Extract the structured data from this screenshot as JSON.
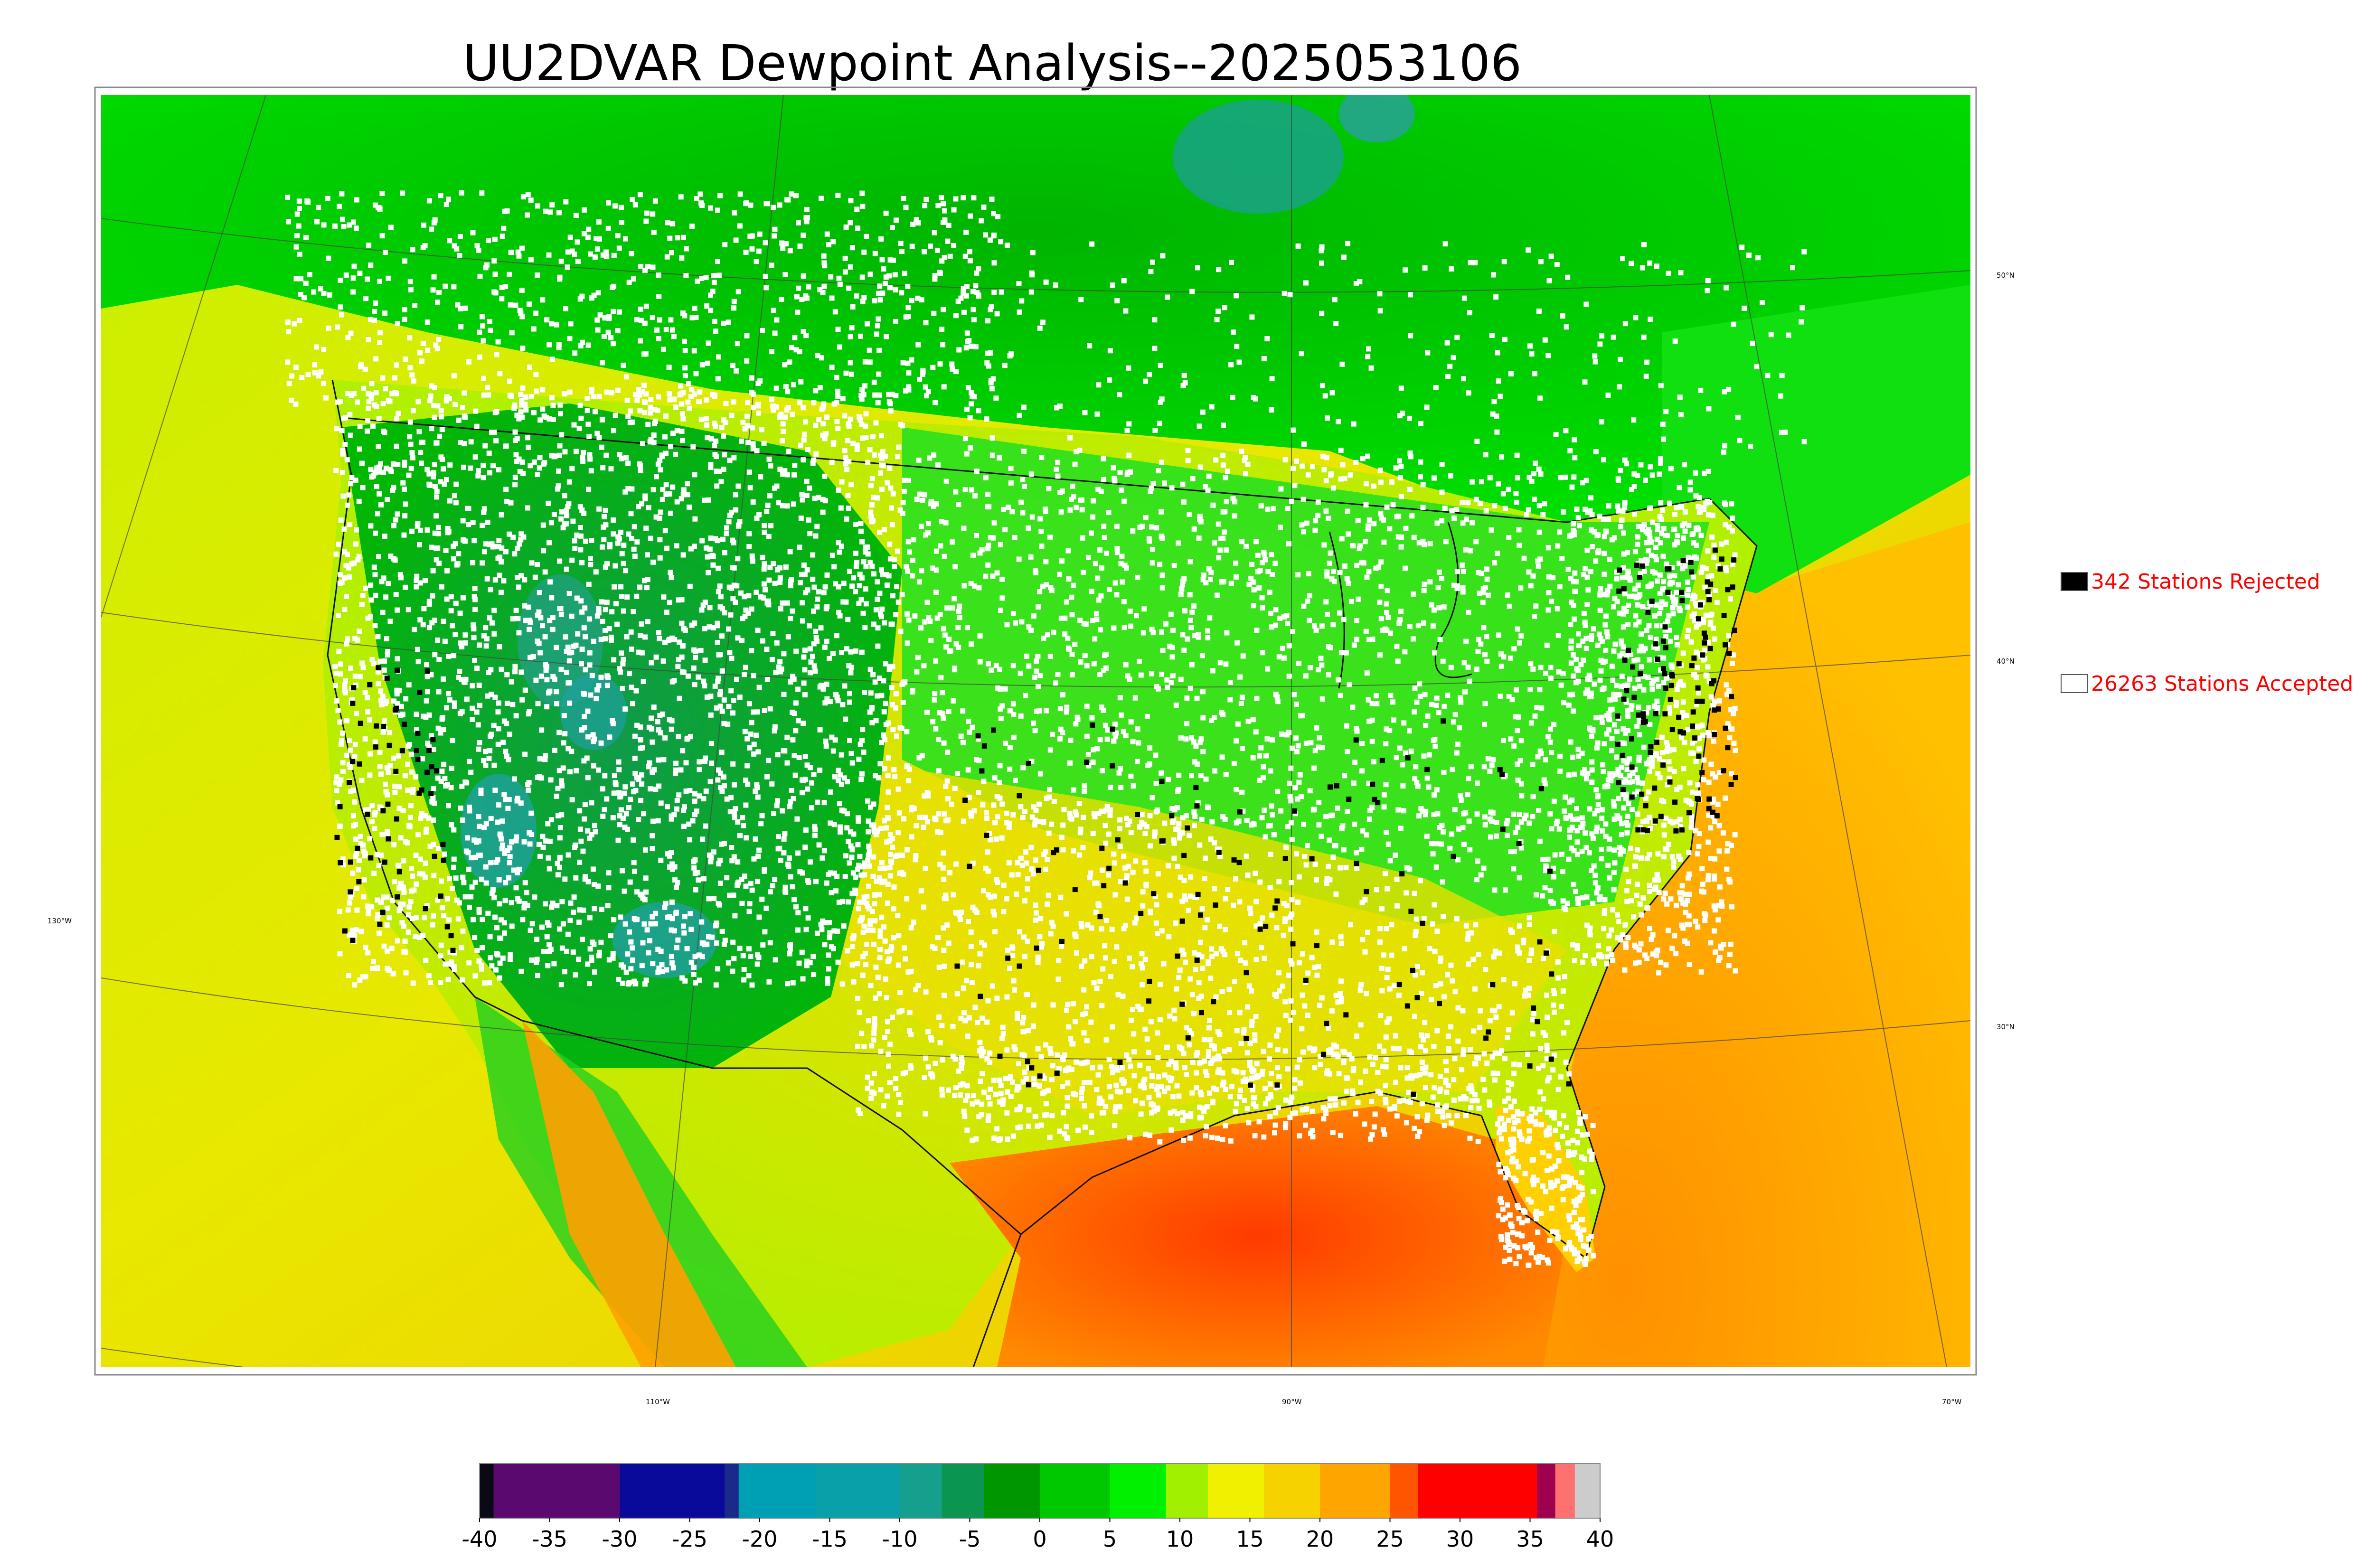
{
  "title": "UU2DVAR Dewpoint Analysis--2025053106",
  "legend": {
    "rejected_label": "342 Stations Rejected",
    "rejected_color": "#000000",
    "accepted_label": "26263 Stations Accepted",
    "accepted_color": "#ffffff",
    "text_color": "#ff0000"
  },
  "longitude_labels": [
    "110°W",
    "90°W",
    "70°W"
  ],
  "latitude_labels": [
    "50°N",
    "40°N",
    "30°N"
  ],
  "left_label": "130°W",
  "colorbar": {
    "ticks": [
      "-40",
      "-35",
      "-30",
      "-25",
      "-20",
      "-15",
      "-10",
      "-5",
      "0",
      "5",
      "10",
      "15",
      "20",
      "25",
      "30",
      "35",
      "40"
    ],
    "range": [
      -40,
      40
    ],
    "segments": [
      {
        "from": -40,
        "to": -39,
        "color": "#0a0a14"
      },
      {
        "from": -39,
        "to": -30,
        "color": "#5a0a6e"
      },
      {
        "from": -30,
        "to": -22.5,
        "color": "#0a0a9a"
      },
      {
        "from": -22.5,
        "to": -21.5,
        "color": "#1a2a8a"
      },
      {
        "from": -21.5,
        "to": -16,
        "color": "#00a0b4"
      },
      {
        "from": -16,
        "to": -10,
        "color": "#0aa0aa"
      },
      {
        "from": -10,
        "to": -7,
        "color": "#14a08c"
      },
      {
        "from": -7,
        "to": -4,
        "color": "#0a9650"
      },
      {
        "from": -4,
        "to": 0,
        "color": "#009600"
      },
      {
        "from": 0,
        "to": 5,
        "color": "#00c800"
      },
      {
        "from": 5,
        "to": 9,
        "color": "#00f000"
      },
      {
        "from": 9,
        "to": 12,
        "color": "#a0f000"
      },
      {
        "from": 12,
        "to": 16,
        "color": "#f0f000"
      },
      {
        "from": 16,
        "to": 20,
        "color": "#f5d200"
      },
      {
        "from": 20,
        "to": 25,
        "color": "#ffa500"
      },
      {
        "from": 25,
        "to": 27,
        "color": "#ff5500"
      },
      {
        "from": 27,
        "to": 35.5,
        "color": "#ff0000"
      },
      {
        "from": 35.5,
        "to": 36.8,
        "color": "#a00050"
      },
      {
        "from": 36.8,
        "to": 38.2,
        "color": "#ff7070"
      },
      {
        "from": 38.2,
        "to": 40,
        "color": "#cccccc"
      }
    ]
  },
  "colors": {
    "ocean_pacific": "#d8e810",
    "ocean_atlantic": "#ffa500",
    "gulf": "#ff5500",
    "station_accepted": "#ffffff",
    "station_rejected": "#000000"
  }
}
